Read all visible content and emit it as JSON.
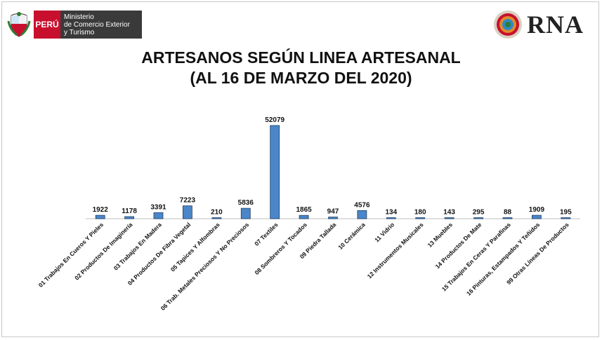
{
  "header": {
    "peru_label": "PERÚ",
    "ministry_lines": [
      "Ministerio",
      "de Comercio Exterior",
      "y Turismo"
    ],
    "rna_label": "RNA"
  },
  "chart_data": {
    "type": "bar",
    "title_line1": "ARTESANOS SEGÚN LINEA ARTESANAL",
    "title_line2": "(AL 16 DE MARZO DEL 2020)",
    "categories": [
      "01 Trabajos En Cueros Y Pieles",
      "02 Productos De Imaginería",
      "03 Trabajos En Madera",
      "04 Productos De Fibra Vegetal",
      "05 Tapices Y Alfombras",
      "06 Trab. Metales Preciosos Y No Preciosos",
      "07 Textiles",
      "08 Sombreros Y Tocados",
      "09 Piedra Tallada",
      "10 Cerámica",
      "11 Vidrio",
      "12 Instrumentos Musicales",
      "13 Muebles",
      "14 Productos De Mate",
      "15 Trabajos En Ceras Y Parafinas",
      "16 Pinturas, Estampados Y Teñidos",
      "99 Otras Líneas De Productos"
    ],
    "values": [
      1922,
      1178,
      3391,
      7223,
      210,
      5836,
      52079,
      1865,
      947,
      4576,
      134,
      180,
      143,
      295,
      88,
      1909,
      195
    ],
    "ylim": [
      0,
      52079
    ],
    "bar_color": "#4a86c8",
    "bar_edge": "#1f3f66",
    "grid": false,
    "legend": false
  }
}
